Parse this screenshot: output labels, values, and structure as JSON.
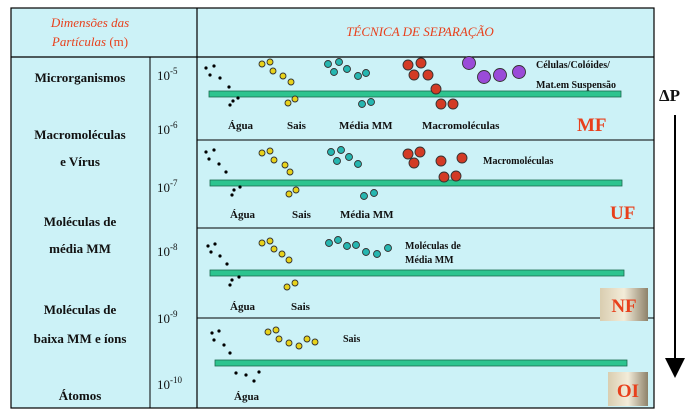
{
  "header": {
    "particle_dimensions_line1": "Dimensões das",
    "particle_dimensions_line2_a": "Partículas",
    "particle_dimensions_line2_b": " (m)",
    "separation_technique": "TÉCNICA DE SEPARAÇÃO"
  },
  "left_labels": {
    "microorganisms": "Microrganismos",
    "macromolecules_1": "Macromoléculas",
    "macromolecules_2": "e Vírus",
    "medium_mm_1": "Moléculas de",
    "medium_mm_2": "média MM",
    "low_mm_1": "Moléculas de",
    "low_mm_2": "baixa MM e íons",
    "atoms": "Átomos"
  },
  "scale": {
    "base": "10",
    "exponents": [
      "-5",
      "-6",
      "-7",
      "-8",
      "-9",
      "-10"
    ]
  },
  "panels": {
    "mf": {
      "top_label_1": "Células/Colóides/",
      "top_label_2": "Mat.em Suspensão",
      "water": "Água",
      "salts": "Sais",
      "medium_mm": "Média MM",
      "macromolecules": "Macromoléculas",
      "badge": "MF"
    },
    "uf": {
      "macromolecules": "Macromoléculas",
      "water": "Água",
      "salts": "Sais",
      "medium_mm": "Média MM",
      "badge": "UF"
    },
    "nf": {
      "medium_mm_1": "Moléculas de",
      "medium_mm_2": "Média MM",
      "water": "Água",
      "salts": "Sais",
      "badge": "NF"
    },
    "oi": {
      "salts": "Sais",
      "water": "Água",
      "badge": "OI"
    }
  },
  "pressure_label": "ΔP",
  "colors": {
    "background": "#ccf2f7",
    "membrane": "#2dc48f",
    "header_text": "#e8401c",
    "badge_text": "#e8401c",
    "salt": "#e8d21a",
    "medium": "#26b6b0",
    "macro": "#d33b25",
    "cell": "#9a4bd8"
  }
}
